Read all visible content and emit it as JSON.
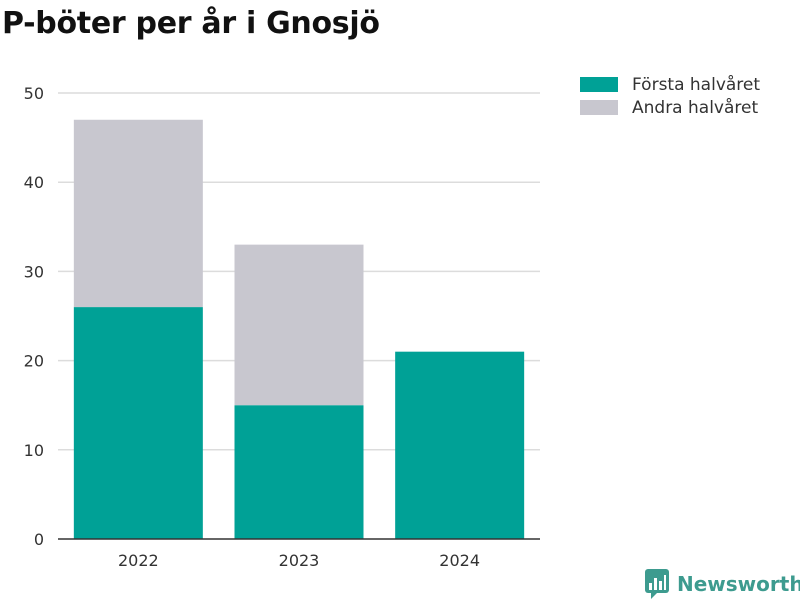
{
  "title": "P-böter per år i Gnosjö",
  "brand": {
    "name": "Newsworthy",
    "icon": "newsworthy-logo-icon",
    "color": "#3d9b8f"
  },
  "colors": {
    "first_half": "#00a196",
    "second_half": "#c8c7cf",
    "grid": "#dcdcdc",
    "axis": "#333333"
  },
  "chart_data": {
    "type": "bar",
    "stacked": true,
    "categories": [
      "2022",
      "2023",
      "2024"
    ],
    "series": [
      {
        "name": "Första halvåret",
        "values": [
          26,
          15,
          21
        ]
      },
      {
        "name": "Andra halvåret",
        "values": [
          21,
          18,
          null
        ]
      }
    ],
    "ylim": [
      0,
      50
    ],
    "yticks": [
      0,
      10,
      20,
      30,
      40,
      50
    ],
    "grid": true,
    "legend": "top-right",
    "xlabel": "",
    "ylabel": ""
  }
}
